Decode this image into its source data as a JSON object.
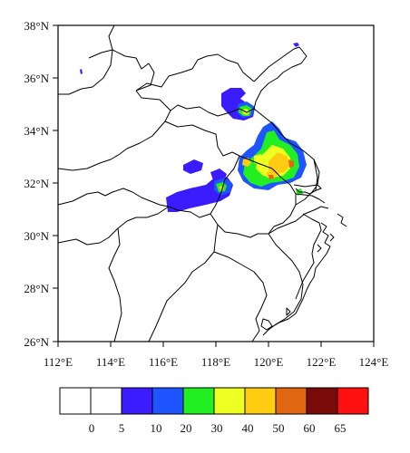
{
  "map": {
    "x_ticks": [
      "112°E",
      "114°E",
      "116°E",
      "118°E",
      "120°E",
      "122°E",
      "124°E"
    ],
    "y_ticks": [
      "38°N",
      "36°N",
      "34°N",
      "32°N",
      "30°N",
      "28°N",
      "26°N"
    ],
    "lon_range": [
      112,
      124
    ],
    "lat_range": [
      26,
      38
    ]
  },
  "colorbar": {
    "colors": [
      "#ffffff",
      "#ffffff",
      "#3a1cff",
      "#1e55ff",
      "#22ee22",
      "#eeff22",
      "#ffcc11",
      "#e06611",
      "#7a0a0a",
      "#ff1111"
    ],
    "labels": [
      "0",
      "5",
      "10",
      "20",
      "30",
      "40",
      "50",
      "60",
      "65"
    ]
  }
}
